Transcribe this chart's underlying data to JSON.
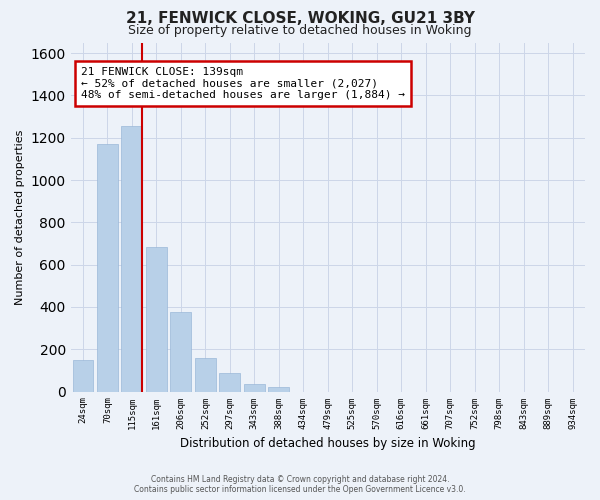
{
  "title": "21, FENWICK CLOSE, WOKING, GU21 3BY",
  "subtitle": "Size of property relative to detached houses in Woking",
  "xlabel": "Distribution of detached houses by size in Woking",
  "ylabel": "Number of detached properties",
  "footer1": "Contains HM Land Registry data © Crown copyright and database right 2024.",
  "footer2": "Contains public sector information licensed under the Open Government Licence v3.0.",
  "bar_labels": [
    "24sqm",
    "70sqm",
    "115sqm",
    "161sqm",
    "206sqm",
    "252sqm",
    "297sqm",
    "343sqm",
    "388sqm",
    "434sqm",
    "479sqm",
    "525sqm",
    "570sqm",
    "616sqm",
    "661sqm",
    "707sqm",
    "752sqm",
    "798sqm",
    "843sqm",
    "889sqm",
    "934sqm"
  ],
  "bar_values": [
    150,
    1170,
    1255,
    685,
    375,
    160,
    90,
    35,
    20,
    0,
    0,
    0,
    0,
    0,
    0,
    0,
    0,
    0,
    0,
    0,
    0
  ],
  "bar_color": "#b8d0e8",
  "bar_edge_color": "#9ab8d8",
  "vline_x_idx": 2,
  "vline_color": "#cc0000",
  "annotation_line1": "21 FENWICK CLOSE: 139sqm",
  "annotation_line2": "← 52% of detached houses are smaller (2,027)",
  "annotation_line3": "48% of semi-detached houses are larger (1,884) →",
  "annotation_box_color": "#ffffff",
  "annotation_box_edge": "#cc0000",
  "ylim": [
    0,
    1650
  ],
  "yticks": [
    0,
    200,
    400,
    600,
    800,
    1000,
    1200,
    1400,
    1600
  ],
  "grid_color": "#ccd6e8",
  "bg_color": "#edf2f9"
}
